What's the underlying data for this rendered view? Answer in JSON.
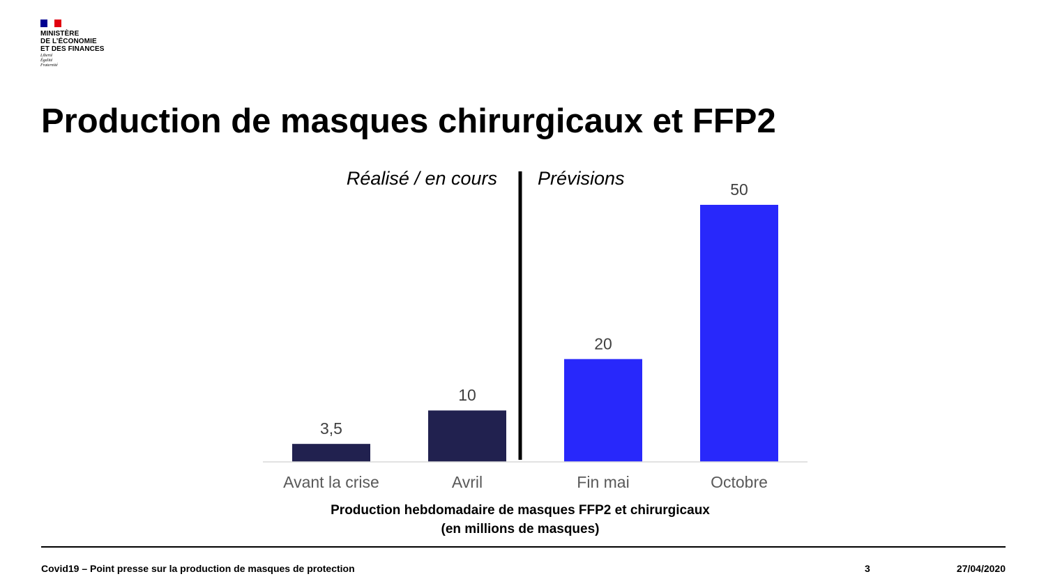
{
  "header": {
    "ministry_lines": [
      "MINISTÈRE",
      "DE L’ÉCONOMIE",
      "ET DES FINANCES"
    ],
    "motto_lines": [
      "Liberté",
      "Égalité",
      "Fraternité"
    ],
    "flag_colors": [
      "#000091",
      "#ffffff",
      "#e1000f"
    ]
  },
  "slide": {
    "title": "Production de masques chirurgicaux et FFP2"
  },
  "chart_data": {
    "type": "bar",
    "categories": [
      "Avant la crise",
      "Avril",
      "Fin mai",
      "Octobre"
    ],
    "values": [
      3.5,
      10,
      20,
      50
    ],
    "data_labels": [
      "3,5",
      "10",
      "20",
      "50"
    ],
    "bar_colors": [
      "#21214f",
      "#21214f",
      "#2828fb",
      "#2828fb"
    ],
    "ylim": [
      0,
      50
    ],
    "grid": false,
    "legend": "none",
    "xlabel": "Production hebdomadaire de masques FFP2 et chirurgicaux",
    "xlabel_unit": "(en millions de masques)",
    "annotations": {
      "left": "Réalisé / en cours",
      "right": "Prévisions"
    }
  },
  "footer": {
    "left_text": "Covid19 – Point presse sur la production de masques de protection",
    "page_number": "3",
    "date": "27/04/2020"
  }
}
